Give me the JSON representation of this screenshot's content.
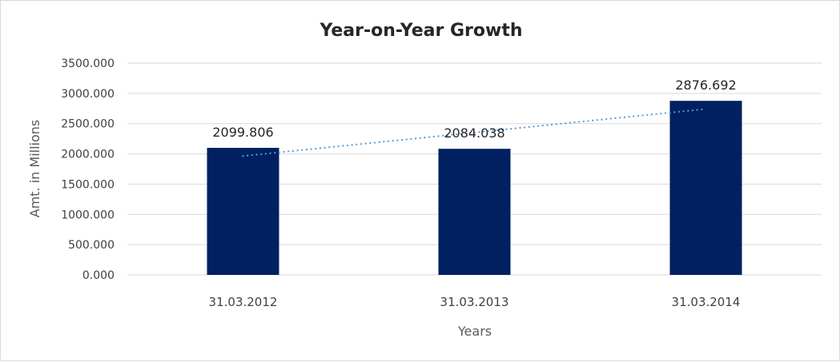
{
  "chart_data": {
    "type": "bar",
    "title": "Year-on-Year Growth",
    "xlabel": "Years",
    "ylabel": "Amt. in Millions",
    "categories": [
      "31.03.2012",
      "31.03.2013",
      "31.03.2014"
    ],
    "values": [
      2099.806,
      2084.038,
      2876.692
    ],
    "data_labels": [
      "2099.806",
      "2084.038",
      "2876.692"
    ],
    "ylim": [
      0,
      3500
    ],
    "yticks": [
      "0.000",
      "500.000",
      "1000.000",
      "1500.000",
      "2000.000",
      "2500.000",
      "3000.000",
      "3500.000"
    ],
    "grid": true,
    "legend": "none",
    "trendline": "linear",
    "colors": {
      "bar": "#002060",
      "trendline": "#5B9BD5",
      "grid": "#d9d9d9"
    }
  }
}
